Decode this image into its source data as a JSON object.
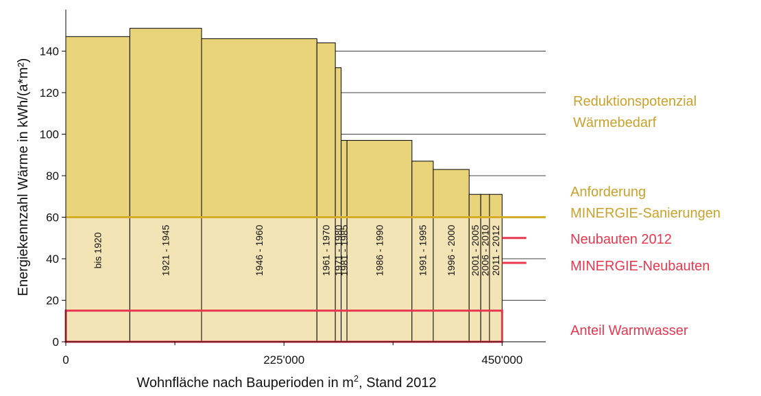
{
  "chart_data": {
    "type": "bar",
    "variant": "variable-width stacked bars",
    "xlabel_main": "Wohnfläche nach Bauperioden in m",
    "xlabel_sup": "2",
    "xlabel_suffix": ", Stand 2012",
    "ylabel": "Energiekennzahl Wärme in kWh/(a*m²)",
    "xlim": [
      0,
      495000
    ],
    "ylim": [
      0,
      160
    ],
    "x_ticks": [
      0,
      225000,
      450000
    ],
    "x_tick_labels": [
      "0",
      "225'000",
      "450'000"
    ],
    "x_minor_ticks": [
      112500,
      337500
    ],
    "y_ticks": [
      0,
      20,
      40,
      60,
      80,
      100,
      120,
      140
    ],
    "grid": "horizontal",
    "base_level": 60,
    "base_fill": "#f3e4b5",
    "upper_fill": "#e9d47b",
    "line_color": "#d6ad26",
    "accent_red": "#e8374e",
    "periods": [
      {
        "label": "bis 1920",
        "x_start": 0,
        "x_end": 66000,
        "value": 147
      },
      {
        "label": "1921 - 1945",
        "x_start": 66000,
        "x_end": 140000,
        "value": 151
      },
      {
        "label": "1946 - 1960",
        "x_start": 140000,
        "x_end": 259000,
        "value": 146
      },
      {
        "label": "1961 - 1970",
        "x_start": 259000,
        "x_end": 278000,
        "value": 144
      },
      {
        "label": "1971 - 1980",
        "x_start": 278000,
        "x_end": 284000,
        "value": 132
      },
      {
        "label": "1981 - 1985",
        "x_start": 284000,
        "x_end": 290000,
        "value": 97
      },
      {
        "label": "1986 - 1990",
        "x_start": 290000,
        "x_end": 357000,
        "value": 97
      },
      {
        "label": "1991 - 1995",
        "x_start": 357000,
        "x_end": 379000,
        "value": 87
      },
      {
        "label": "1996 - 2000",
        "x_start": 379000,
        "x_end": 416000,
        "value": 83
      },
      {
        "label": "2001 - 2005",
        "x_start": 416000,
        "x_end": 428000,
        "value": 71
      },
      {
        "label": "2006 - 2010",
        "x_start": 428000,
        "x_end": 437000,
        "value": 71
      },
      {
        "label": "2011 - 2012",
        "x_start": 437000,
        "x_end": 450000,
        "value": 71
      }
    ],
    "reference_lines": [
      {
        "value": 60,
        "x_start": 0,
        "x_end": 495000,
        "label_key": "minergie_sanierung"
      },
      {
        "value": 50,
        "x_start": 450000,
        "x_end": 475000,
        "label_key": "neubauten_2012"
      },
      {
        "value": 38,
        "x_start": 450000,
        "x_end": 475000,
        "label_key": "minergie_neubauten"
      }
    ],
    "warmwasser_box": {
      "y_from": 0,
      "y_to": 15,
      "x_start": 0,
      "x_end": 450000
    },
    "annotations": {
      "reduktion_line1": "Reduktionspotenzial",
      "reduktion_line2": "Wärmebedarf",
      "anforderung_line1": "Anforderung",
      "anforderung_line2": "MINERGIE-Sanierungen",
      "neubauten_2012": "Neubauten 2012",
      "minergie_neubauten": "MINERGIE-Neubauten",
      "warmwasser": "Anteil Warmwasser"
    }
  }
}
